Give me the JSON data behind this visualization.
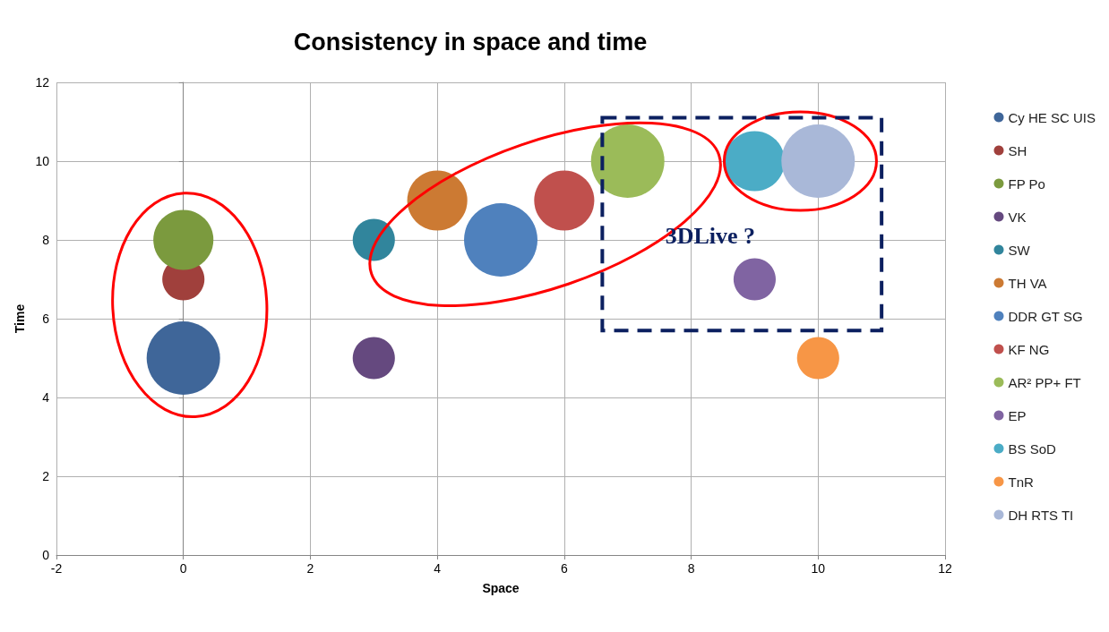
{
  "chart_data": {
    "type": "bubble",
    "title": "Consistency in space and time",
    "xlabel": "Space",
    "ylabel": "Time",
    "xlim": [
      -2,
      12
    ],
    "xticks": [
      -2,
      0,
      2,
      4,
      6,
      8,
      10,
      12
    ],
    "ylim": [
      0,
      12
    ],
    "yticks": [
      0,
      2,
      4,
      6,
      8,
      10,
      12
    ],
    "grid": true,
    "legend": "right",
    "marker": "circle",
    "annotations": [
      "3DLive ?"
    ],
    "series": [
      {
        "name": "Cy HE SC UIS",
        "color": "#3f6699",
        "x": [
          0
        ],
        "values": [
          5
        ],
        "sizes": [
          1
        ]
      },
      {
        "name": "SH",
        "color": "#a0403c",
        "x": [
          0
        ],
        "values": [
          7
        ],
        "sizes": [
          0.33
        ]
      },
      {
        "name": "FP Po",
        "color": "#7b9a3e",
        "x": [
          0
        ],
        "values": [
          8
        ],
        "sizes": [
          0.67
        ]
      },
      {
        "name": "VK",
        "color": "#65497f",
        "x": [
          3
        ],
        "values": [
          5
        ],
        "sizes": [
          0.33
        ]
      },
      {
        "name": "SW",
        "color": "#31859c",
        "x": [
          3
        ],
        "values": [
          8
        ],
        "sizes": [
          0.33
        ]
      },
      {
        "name": "TH VA",
        "color": "#cc7a33",
        "x": [
          4
        ],
        "values": [
          9
        ],
        "sizes": [
          0.67
        ]
      },
      {
        "name": "DDR GT SG",
        "color": "#4f81bd",
        "x": [
          5
        ],
        "values": [
          8
        ],
        "sizes": [
          1
        ]
      },
      {
        "name": "KF NG",
        "color": "#c0504d",
        "x": [
          6
        ],
        "values": [
          9
        ],
        "sizes": [
          0.67
        ]
      },
      {
        "name": "AR² PP+ FT",
        "color": "#9bbb59",
        "x": [
          7
        ],
        "values": [
          10
        ],
        "sizes": [
          1
        ]
      },
      {
        "name": "EP",
        "color": "#8064a2",
        "x": [
          9
        ],
        "values": [
          7
        ],
        "sizes": [
          0.33
        ]
      },
      {
        "name": "BS SoD",
        "color": "#4bacc6",
        "x": [
          9
        ],
        "values": [
          10
        ],
        "sizes": [
          0.67
        ]
      },
      {
        "name": "TnR",
        "color": "#f79646",
        "x": [
          10
        ],
        "values": [
          5
        ],
        "sizes": [
          0.33
        ]
      },
      {
        "name": "DH RTS TI",
        "color": "#a9b8d8",
        "x": [
          10
        ],
        "values": [
          10
        ],
        "sizes": [
          1
        ]
      }
    ]
  }
}
